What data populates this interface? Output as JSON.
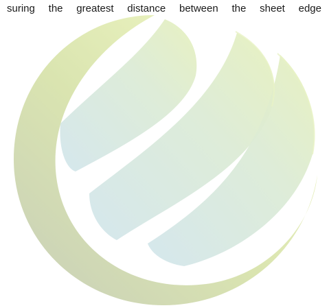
{
  "document": {
    "text_line": "suring the greatest distance between the sheet edge"
  },
  "watermark": {
    "icon": "globe-swoosh-logo",
    "colors": {
      "ring_light": "#eef5c4",
      "ring_mid": "#d6e2a8",
      "ring_dark": "#c9d1b3",
      "swoosh_blue": "#d4e6ea",
      "swoosh_green": "#e1edbd"
    }
  }
}
